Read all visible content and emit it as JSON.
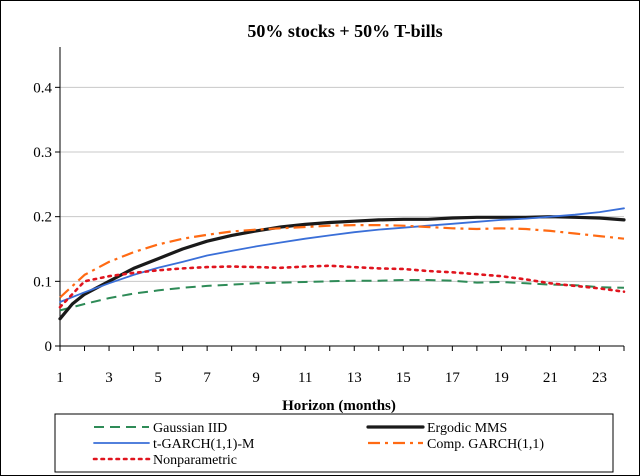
{
  "chart_data": {
    "type": "line",
    "title": "50% stocks + 50% T-bills",
    "xlabel": "Horizon (months)",
    "ylabel": "",
    "xlim": [
      1,
      24
    ],
    "ylim": [
      0,
      0.45
    ],
    "x_ticks": [
      "1",
      "3",
      "5",
      "7",
      "9",
      "11",
      "13",
      "15",
      "17",
      "19",
      "21",
      "23"
    ],
    "y_ticks": [
      "0",
      "0.1",
      "0.2",
      "0.3",
      "0.4"
    ],
    "y_tick_values": [
      0,
      0.1,
      0.2,
      0.3,
      0.4
    ],
    "x_tick_values": [
      1,
      3,
      5,
      7,
      9,
      11,
      13,
      15,
      17,
      19,
      21,
      23
    ],
    "grid": "horizontal-only",
    "legend_position": "bottom",
    "series": [
      {
        "name": "Gaussian IID",
        "color": "#2e8b57",
        "style": "dashed",
        "x": [
          1,
          2,
          3,
          4,
          5,
          6,
          7,
          8,
          9,
          10,
          11,
          12,
          13,
          14,
          15,
          16,
          17,
          18,
          19,
          20,
          21,
          22,
          23,
          24
        ],
        "values": [
          0.055,
          0.065,
          0.074,
          0.081,
          0.086,
          0.09,
          0.093,
          0.095,
          0.097,
          0.098,
          0.099,
          0.1,
          0.101,
          0.101,
          0.102,
          0.102,
          0.101,
          0.098,
          0.099,
          0.097,
          0.095,
          0.094,
          0.091,
          0.09
        ]
      },
      {
        "name": "Ergodic MMS",
        "color": "#1a1a1a",
        "style": "solid-thick",
        "x": [
          1,
          1.5,
          2,
          3,
          4,
          5,
          6,
          7,
          8,
          9,
          10,
          11,
          12,
          13,
          14,
          15,
          16,
          17,
          18,
          19,
          20,
          21,
          22,
          23,
          24
        ],
        "values": [
          0.042,
          0.065,
          0.08,
          0.1,
          0.12,
          0.135,
          0.15,
          0.162,
          0.171,
          0.178,
          0.184,
          0.188,
          0.191,
          0.193,
          0.195,
          0.196,
          0.196,
          0.198,
          0.199,
          0.199,
          0.199,
          0.2,
          0.199,
          0.198,
          0.195
        ]
      },
      {
        "name": "t-GARCH(1,1)-M",
        "color": "#3a6fd8",
        "style": "solid",
        "x": [
          1,
          2,
          3,
          4,
          5,
          6,
          7,
          8,
          9,
          10,
          11,
          12,
          13,
          14,
          15,
          16,
          17,
          18,
          19,
          20,
          21,
          22,
          23,
          24
        ],
        "values": [
          0.068,
          0.083,
          0.097,
          0.11,
          0.121,
          0.13,
          0.14,
          0.147,
          0.154,
          0.16,
          0.166,
          0.171,
          0.176,
          0.18,
          0.183,
          0.186,
          0.189,
          0.192,
          0.195,
          0.197,
          0.2,
          0.203,
          0.207,
          0.213
        ]
      },
      {
        "name": "Comp. GARCH(1,1)",
        "color": "#ff6a13",
        "style": "dashdot",
        "x": [
          1,
          2,
          3,
          4,
          5,
          6,
          7,
          8,
          9,
          10,
          11,
          12,
          13,
          14,
          15,
          16,
          17,
          18,
          19,
          20,
          21,
          22,
          23,
          24
        ],
        "values": [
          0.075,
          0.11,
          0.13,
          0.145,
          0.157,
          0.166,
          0.172,
          0.177,
          0.18,
          0.182,
          0.184,
          0.186,
          0.187,
          0.187,
          0.186,
          0.184,
          0.182,
          0.181,
          0.182,
          0.181,
          0.178,
          0.174,
          0.17,
          0.166
        ]
      },
      {
        "name": "Nonparametric",
        "color": "#e0141e",
        "style": "dotted",
        "x": [
          1,
          2,
          3,
          4,
          5,
          6,
          7,
          8,
          9,
          10,
          11,
          12,
          13,
          14,
          15,
          16,
          17,
          18,
          19,
          20,
          21,
          22,
          23,
          24
        ],
        "values": [
          0.06,
          0.1,
          0.108,
          0.113,
          0.117,
          0.12,
          0.122,
          0.123,
          0.122,
          0.121,
          0.123,
          0.124,
          0.122,
          0.12,
          0.119,
          0.116,
          0.114,
          0.111,
          0.108,
          0.103,
          0.097,
          0.093,
          0.089,
          0.084
        ]
      }
    ]
  }
}
